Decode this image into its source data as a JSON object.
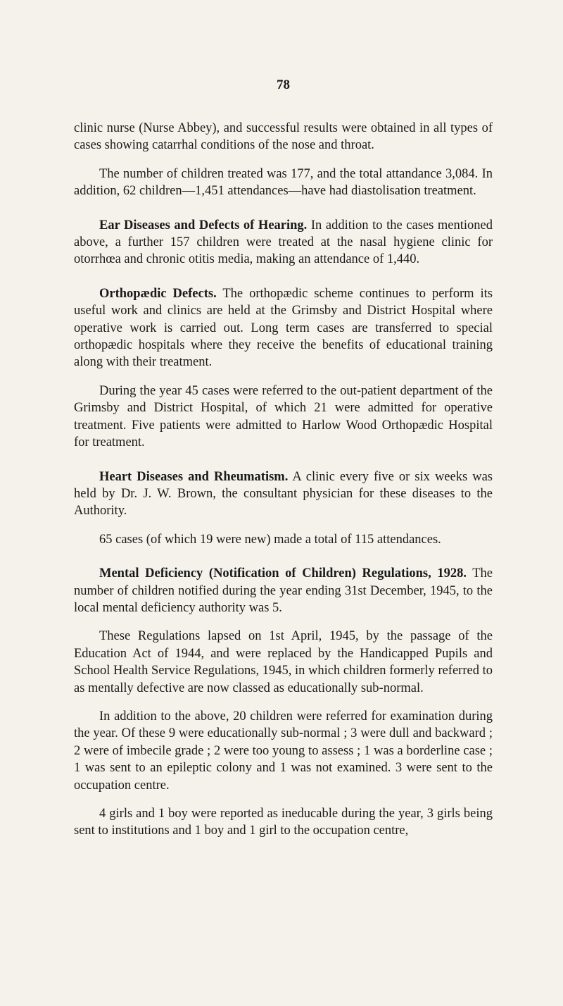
{
  "page_number": "78",
  "paragraphs": {
    "p1": "clinic nurse (Nurse Abbey), and successful results were obtained in all types of cases showing catarrhal conditions of the nose and throat.",
    "p2": "The number of children treated was 177, and the total attandance 3,084. In addition, 62 children—1,451 attendances—have had diastolisation treatment.",
    "p3_bold": "Ear Diseases and Defects of Hearing.",
    "p3_rest": " In addition to the cases mentioned above, a further 157 children were treated at the nasal hygiene clinic for otorrhœa and chronic otitis media, making an attendance of 1,440.",
    "p4_bold": "Orthopædic Defects.",
    "p4_rest": " The orthopædic scheme continues to perform its useful work and clinics are held at the Grimsby and District Hospital where operative work is carried out. Long term cases are transferred to special orthopædic hospitals where they receive the benefits of educational training along with their treatment.",
    "p5": "During the year 45 cases were referred to the out-patient department of the Grimsby and District Hospital, of which 21 were admitted for operative treatment. Five patients were admitted to Harlow Wood Orthopædic Hospital for treatment.",
    "p6_bold": "Heart Diseases and Rheumatism.",
    "p6_rest": " A clinic every five or six weeks was held by Dr. J. W. Brown, the consultant physician for these diseases to the Authority.",
    "p7": "65 cases (of which 19 were new) made a total of 115 attendances.",
    "p8_bold": "Mental Deficiency (Notification of Children) Regulations, 1928.",
    "p8_rest": " The number of children notified during the year ending 31st December, 1945, to the local mental deficiency authority was 5.",
    "p9": "These Regulations lapsed on 1st April, 1945, by the passage of the Education Act of 1944, and were replaced by the Handicapped Pupils and School Health Service Regulations, 1945, in which children formerly referred to as mentally defective are now classed as educationally sub-normal.",
    "p10": "In addition to the above, 20 children were referred for examination during the year. Of these 9 were educationally sub-normal ; 3 were dull and backward ; 2 were of imbecile grade ; 2 were too young to assess ; 1 was a borderline case ; 1 was sent to an epileptic colony and 1 was not examined. 3 were sent to the occupation centre.",
    "p11": "4 girls and 1 boy were reported as ineducable during the year, 3 girls being sent to institutions and 1 boy and 1 girl to the occupation centre,"
  }
}
